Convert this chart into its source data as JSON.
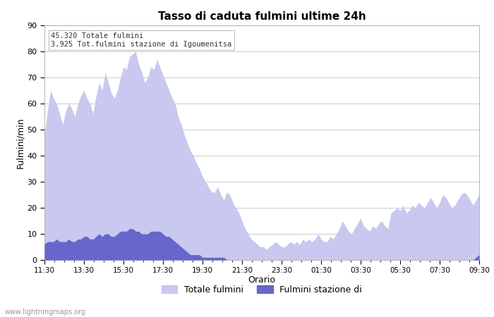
{
  "title": "Tasso di caduta fulmini ultime 24h",
  "xlabel": "Orario",
  "ylabel": "Fulmini/min",
  "annotation_line1": "45.320 Totale fulmini",
  "annotation_line2": "3.925 Tot.fulmini stazione di Igoumenitsa",
  "legend_label1": "Totale fulmini",
  "legend_label2": "Fulmini stazione di",
  "watermark": "www.lightningmaps.org",
  "ylim": [
    0,
    90
  ],
  "color_total": "#c8c8f0",
  "color_station": "#6666cc",
  "bg_color": "#ffffff",
  "grid_color": "#cccccc",
  "x_ticks": [
    "11:30",
    "13:30",
    "15:30",
    "17:30",
    "19:30",
    "21:30",
    "23:30",
    "01:30",
    "03:30",
    "05:30",
    "07:30",
    "09:30"
  ],
  "total_values": [
    48,
    57,
    65,
    62,
    60,
    56,
    52,
    57,
    60,
    58,
    55,
    60,
    63,
    65,
    62,
    60,
    56,
    63,
    68,
    65,
    72,
    68,
    64,
    62,
    65,
    70,
    74,
    73,
    78,
    79,
    80,
    75,
    72,
    68,
    70,
    74,
    73,
    77,
    74,
    71,
    68,
    65,
    62,
    60,
    55,
    52,
    48,
    45,
    42,
    40,
    37,
    35,
    32,
    30,
    28,
    26,
    26,
    28,
    25,
    23,
    26,
    25,
    22,
    20,
    18,
    15,
    12,
    10,
    8,
    7,
    6,
    5,
    5,
    4,
    5,
    6,
    7,
    6,
    5,
    5,
    6,
    7,
    6,
    7,
    6,
    8,
    7,
    8,
    7,
    8,
    10,
    8,
    7,
    7,
    9,
    8,
    10,
    12,
    15,
    13,
    11,
    10,
    12,
    14,
    16,
    13,
    12,
    11,
    13,
    12,
    14,
    15,
    13,
    12,
    18,
    19,
    20,
    19,
    21,
    18,
    19,
    21,
    20,
    22,
    21,
    20,
    22,
    24,
    22,
    20,
    22,
    25,
    24,
    22,
    20,
    21,
    23,
    25,
    26,
    25,
    23,
    21,
    23,
    25
  ],
  "station_values": [
    6,
    7,
    7,
    7,
    8,
    7,
    7,
    7,
    8,
    7,
    7,
    8,
    8,
    9,
    9,
    8,
    8,
    9,
    10,
    9,
    10,
    10,
    9,
    9,
    10,
    11,
    11,
    11,
    12,
    12,
    11,
    11,
    10,
    10,
    10,
    11,
    11,
    11,
    11,
    10,
    9,
    9,
    8,
    7,
    6,
    5,
    4,
    3,
    2,
    2,
    2,
    2,
    1,
    1,
    1,
    1,
    1,
    1,
    1,
    1,
    0,
    0,
    0,
    0,
    0,
    0,
    0,
    0,
    0,
    0,
    0,
    0,
    0,
    0,
    0,
    0,
    0,
    0,
    0,
    0,
    0,
    0,
    0,
    0,
    0,
    0,
    0,
    0,
    0,
    0,
    0,
    0,
    0,
    0,
    0,
    0,
    0,
    0,
    0,
    0,
    0,
    0,
    0,
    0,
    0,
    0,
    0,
    0,
    0,
    0,
    0,
    0,
    0,
    0,
    0,
    0,
    0,
    0,
    0,
    0,
    0,
    0,
    0,
    0,
    0,
    0,
    0,
    0,
    0,
    0,
    0,
    0,
    0,
    0,
    0,
    0,
    0,
    0,
    0,
    0,
    0,
    0,
    1,
    2
  ]
}
